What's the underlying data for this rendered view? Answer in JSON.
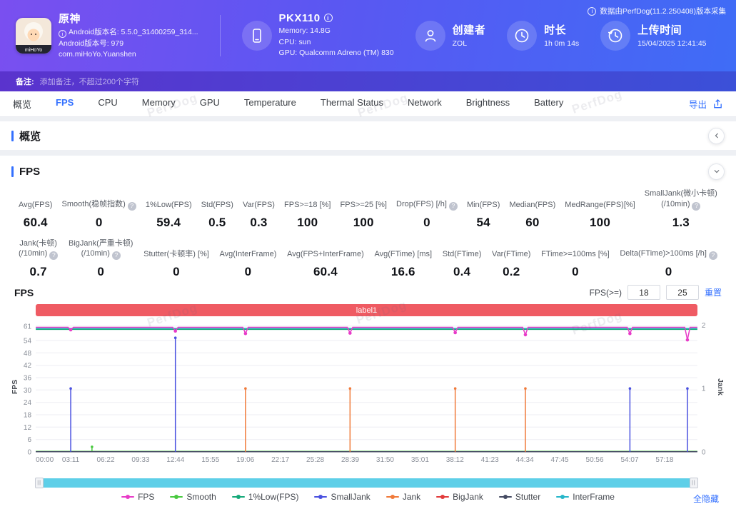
{
  "colors": {
    "accent": "#3370ff",
    "banner": "#ef5b63",
    "scrollbar": "#5ecfe8",
    "header_a": "#7a4ff0",
    "header_b": "#3f6cf6",
    "remark_a": "#5a33cd",
    "remark_b": "#3b50d8"
  },
  "header": {
    "data_source_note": "数据由PerfDog(11.2.250408)版本采集",
    "app": {
      "icon_text": "miHoYo",
      "name": "原神",
      "version_name": "Android版本名: 5.5.0_31400259_314...",
      "version_code": "Android版本号: 979",
      "package": "com.miHoYo.Yuanshen"
    },
    "device": {
      "name": "PKX110",
      "memory": "Memory: 14.8G",
      "cpu": "CPU: sun",
      "gpu": "GPU: Qualcomm Adreno (TM) 830"
    },
    "creator": {
      "label": "创建者",
      "value": "ZOL"
    },
    "duration": {
      "label": "时长",
      "value": "1h 0m 14s"
    },
    "upload": {
      "label": "上传时间",
      "value": "15/04/2025 12:41:45"
    }
  },
  "remark": {
    "label": "备注:",
    "placeholder": "添加备注，不超过200个字符"
  },
  "tabs": {
    "items": [
      {
        "label": "概览",
        "active": false
      },
      {
        "label": "FPS",
        "active": true
      },
      {
        "label": "CPU",
        "active": false
      },
      {
        "label": "Memory",
        "active": false
      },
      {
        "label": "GPU",
        "active": false
      },
      {
        "label": "Temperature",
        "active": false
      },
      {
        "label": "Thermal Status",
        "active": false
      },
      {
        "label": "Network",
        "active": false
      },
      {
        "label": "Brightness",
        "active": false
      },
      {
        "label": "Battery",
        "active": false
      }
    ],
    "export_label": "导出"
  },
  "overview": {
    "title": "概览"
  },
  "fps_section": {
    "title": "FPS",
    "chart_title": "FPS",
    "threshold_label": "FPS(>=)",
    "threshold1": "18",
    "threshold2": "25",
    "reset_label": "重置",
    "hide_all_label": "全隐藏",
    "stats_row1": [
      {
        "label": "Avg(FPS)",
        "value": "60.4"
      },
      {
        "label": "Smooth(稳帧指数)",
        "value": "0",
        "help": true
      },
      {
        "label": "1%Low(FPS)",
        "value": "59.4"
      },
      {
        "label": "Std(FPS)",
        "value": "0.5"
      },
      {
        "label": "Var(FPS)",
        "value": "0.3"
      },
      {
        "label": "FPS>=18 [%]",
        "value": "100"
      },
      {
        "label": "FPS>=25 [%]",
        "value": "100"
      },
      {
        "label": "Drop(FPS) [/h]",
        "value": "0",
        "help": true
      },
      {
        "label": "Min(FPS)",
        "value": "54"
      },
      {
        "label": "Median(FPS)",
        "value": "60"
      },
      {
        "label": "MedRange(FPS)[%]",
        "value": "100"
      },
      {
        "label": "SmallJank(微小卡顿)\n(/10min)",
        "value": "1.3",
        "help": true
      }
    ],
    "stats_row2": [
      {
        "label": "Jank(卡顿)\n(/10min)",
        "value": "0.7",
        "help": true
      },
      {
        "label": "BigJank(严重卡顿)\n(/10min)",
        "value": "0",
        "help": true
      },
      {
        "label": "Stutter(卡顿率) [%]",
        "value": "0"
      },
      {
        "label": "Avg(InterFrame)",
        "value": "0"
      },
      {
        "label": "Avg(FPS+InterFrame)",
        "value": "60.4"
      },
      {
        "label": "Avg(FTime) [ms]",
        "value": "16.6"
      },
      {
        "label": "Std(FTime)",
        "value": "0.4"
      },
      {
        "label": "Var(FTime)",
        "value": "0.2"
      },
      {
        "label": "FTime>=100ms [%]",
        "value": "0"
      },
      {
        "label": "Delta(FTime)>100ms [/h]",
        "value": "0",
        "help": true
      }
    ]
  },
  "legend": [
    {
      "name": "FPS",
      "color": "#e83bc8"
    },
    {
      "name": "Smooth",
      "color": "#49c93f"
    },
    {
      "name": "1%Low(FPS)",
      "color": "#15a979"
    },
    {
      "name": "SmallJank",
      "color": "#4a51e0"
    },
    {
      "name": "Jank",
      "color": "#f07a3a"
    },
    {
      "name": "BigJank",
      "color": "#e23b3b"
    },
    {
      "name": "Stutter",
      "color": "#454b63"
    },
    {
      "name": "InterFrame",
      "color": "#26b6c9"
    }
  ],
  "watermark": "PerfDog",
  "chart_data": {
    "type": "line",
    "title": "label1",
    "x_axis": {
      "ticks": [
        "00:00",
        "03:11",
        "06:22",
        "09:33",
        "12:44",
        "15:55",
        "19:06",
        "22:17",
        "25:28",
        "28:39",
        "31:50",
        "35:01",
        "38:12",
        "41:23",
        "44:34",
        "47:45",
        "50:56",
        "54:07",
        "57:18"
      ],
      "tick_fraction": 0.0528
    },
    "y_left": {
      "label": "FPS",
      "ticks": [
        61,
        54,
        48,
        42,
        36,
        30,
        24,
        18,
        12,
        6,
        0
      ],
      "max": 63
    },
    "y_right": {
      "label": "Jank",
      "ticks": [
        2,
        1,
        0
      ],
      "max": 2.05
    },
    "series": [
      {
        "name": "InterFrame",
        "color": "#26b6c9",
        "baseline": 59.9
      },
      {
        "name": "1%Low(FPS)",
        "color": "#15a979",
        "baseline": 59.4
      },
      {
        "name": "Smooth",
        "color": "#49c93f",
        "baseline": 0.25,
        "events": [
          {
            "x": 0.085,
            "v": 0.08
          }
        ]
      },
      {
        "name": "Stutter",
        "color": "#454b63",
        "baseline": 0.12
      },
      {
        "name": "SmallJank",
        "color": "#4a51e0",
        "events": [
          {
            "x": 0.0528,
            "v": 1
          },
          {
            "x": 0.211,
            "v": 1.8
          },
          {
            "x": 0.898,
            "v": 1
          },
          {
            "x": 0.985,
            "v": 1
          }
        ]
      },
      {
        "name": "Jank",
        "color": "#f07a3a",
        "events": [
          {
            "x": 0.317,
            "v": 1
          },
          {
            "x": 0.475,
            "v": 1
          },
          {
            "x": 0.634,
            "v": 1
          },
          {
            "x": 0.74,
            "v": 1
          }
        ]
      },
      {
        "name": "BigJank",
        "color": "#e23b3b",
        "events": []
      },
      {
        "name": "FPS",
        "color": "#e83bc8",
        "baseline": 60.4,
        "dips": [
          {
            "x": 0.0528,
            "v": 59.2
          },
          {
            "x": 0.211,
            "v": 58.6
          },
          {
            "x": 0.317,
            "v": 57.4
          },
          {
            "x": 0.475,
            "v": 57.6
          },
          {
            "x": 0.634,
            "v": 57.8
          },
          {
            "x": 0.74,
            "v": 56.8
          },
          {
            "x": 0.898,
            "v": 57.4
          },
          {
            "x": 0.985,
            "v": 54.3
          }
        ]
      }
    ]
  }
}
